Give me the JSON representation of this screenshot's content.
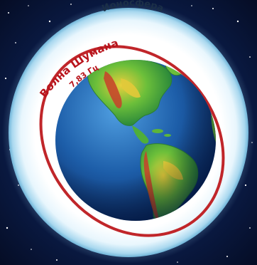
{
  "labels": {
    "ionosphere": "Ионосфера",
    "wave_name": "Волна Шумана",
    "frequency": "7,83 Гц"
  },
  "colors": {
    "space": "#06102e",
    "ionosphere_glow": "#bfe6f7",
    "ionosphere_ring": "#ffffff",
    "wave": "#c0262a",
    "ocean": "#1f5fa8",
    "land_green": "#3fa83a",
    "land_yellow": "#e2c93a",
    "land_red": "#c8402a",
    "text_dark": "#1b2f47",
    "text_red": "#b8141c"
  }
}
